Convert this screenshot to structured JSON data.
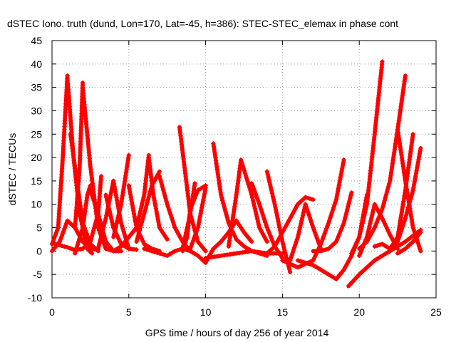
{
  "chart_data": {
    "type": "scatter",
    "title": "dSTEC Iono. truth (dund, Lon=170, Lat=-45, h=386): STEC-STEC_elemax in phase cont",
    "xlabel": "GPS time / hours of day 256 of year 2014",
    "ylabel": "dSTEC  / TECUs",
    "xlim": [
      0,
      25
    ],
    "ylim": [
      -10,
      45
    ],
    "x_ticks": [
      "0",
      "5",
      "10",
      "15",
      "20",
      "25"
    ],
    "y_ticks": [
      "-10",
      "-5",
      "0",
      "5",
      "10",
      "15",
      "20",
      "25",
      "30",
      "35",
      "40",
      "45"
    ],
    "grid": true,
    "marker": "+",
    "color": "#ff0000",
    "series": [
      {
        "x": [
          0.0,
          0.4,
          0.7,
          1.0
        ],
        "y": [
          1.5,
          5.0,
          20.0,
          37.5
        ]
      },
      {
        "x": [
          1.0,
          1.4,
          1.8,
          2.3,
          2.6
        ],
        "y": [
          37.0,
          20.0,
          8.0,
          0.5,
          -0.5
        ]
      },
      {
        "x": [
          0.0,
          0.5,
          1.0,
          1.5,
          2.0,
          2.5,
          3.0
        ],
        "y": [
          0.0,
          2.0,
          6.5,
          5.0,
          2.0,
          0.5,
          0.3
        ]
      },
      {
        "x": [
          0.2,
          1.0,
          1.5,
          2.0,
          2.5,
          3.0,
          3.2
        ],
        "y": [
          1.5,
          0.8,
          0.2,
          0.5,
          2.0,
          8.0,
          16.0
        ]
      },
      {
        "x": [
          1.5,
          1.8,
          2.0
        ],
        "y": [
          5.0,
          18.0,
          36.0
        ]
      },
      {
        "x": [
          2.0,
          2.5,
          3.0,
          3.5
        ],
        "y": [
          35.0,
          18.0,
          5.0,
          0.5
        ]
      },
      {
        "x": [
          1.2,
          2.0,
          2.5,
          3.0
        ],
        "y": [
          25.0,
          6.0,
          1.5,
          0.0
        ]
      },
      {
        "x": [
          1.5,
          2.0,
          2.3,
          2.5
        ],
        "y": [
          -0.5,
          5.0,
          12.0,
          14.0
        ]
      },
      {
        "x": [
          2.5,
          3.0,
          3.5,
          4.0,
          4.5
        ],
        "y": [
          13.0,
          8.0,
          2.0,
          0.0,
          0.0
        ]
      },
      {
        "x": [
          3.0,
          3.5,
          4.0
        ],
        "y": [
          0.5,
          7.0,
          15.0
        ]
      },
      {
        "x": [
          4.0,
          4.5,
          5.0
        ],
        "y": [
          15.0,
          6.0,
          0.5
        ]
      },
      {
        "x": [
          3.5,
          4.0,
          4.5,
          5.0,
          5.5
        ],
        "y": [
          12.0,
          5.0,
          1.5,
          0.5,
          0.3
        ]
      },
      {
        "x": [
          4.0,
          4.5,
          5.0
        ],
        "y": [
          3.0,
          10.0,
          20.5
        ]
      },
      {
        "x": [
          3.5,
          4.0,
          4.5,
          5.0,
          5.5,
          6.0,
          6.3
        ],
        "y": [
          0.5,
          0.0,
          1.0,
          3.0,
          5.0,
          12.0,
          20.5
        ]
      },
      {
        "x": [
          6.3,
          6.6,
          7.0,
          7.5
        ],
        "y": [
          20.0,
          12.0,
          5.0,
          2.5
        ]
      },
      {
        "x": [
          5.0,
          5.5,
          6.0,
          6.5,
          7.0
        ],
        "y": [
          14.0,
          5.0,
          1.5,
          0.5,
          0.0
        ]
      },
      {
        "x": [
          5.5,
          6.0,
          6.5,
          7.0
        ],
        "y": [
          2.0,
          8.0,
          14.0,
          17.0
        ]
      },
      {
        "x": [
          7.0,
          7.5,
          8.0,
          8.5,
          9.0
        ],
        "y": [
          16.0,
          10.0,
          5.0,
          2.0,
          0.0
        ]
      },
      {
        "x": [
          6.0,
          6.5,
          7.0,
          7.5,
          8.0,
          8.5,
          9.0,
          9.5,
          10.0
        ],
        "y": [
          0.5,
          0.0,
          -0.5,
          -1.0,
          0.0,
          0.5,
          0.0,
          -1.0,
          -2.5
        ]
      },
      {
        "x": [
          8.3,
          8.7,
          9.0,
          9.5,
          10.0
        ],
        "y": [
          26.5,
          16.0,
          8.0,
          2.0,
          0.0
        ]
      },
      {
        "x": [
          8.5,
          9.0,
          9.3
        ],
        "y": [
          0.5,
          8.0,
          14.5
        ]
      },
      {
        "x": [
          8.5,
          8.8,
          9.0,
          9.5,
          10.0
        ],
        "y": [
          0.0,
          3.0,
          9.0,
          13.0,
          14.0
        ]
      },
      {
        "x": [
          9.0,
          9.5,
          10.0
        ],
        "y": [
          0.5,
          5.0,
          13.5
        ]
      },
      {
        "x": [
          10.0,
          10.5,
          11.0,
          11.5,
          12.0,
          12.5,
          13.0
        ],
        "y": [
          -2.5,
          0.5,
          2.0,
          4.0,
          6.5,
          4.0,
          2.0
        ]
      },
      {
        "x": [
          10.5,
          11.0,
          11.5,
          12.0,
          12.5,
          13.0,
          13.5,
          14.0
        ],
        "y": [
          23.0,
          12.0,
          6.0,
          2.5,
          1.0,
          0.0,
          -0.5,
          -1.0
        ]
      },
      {
        "x": [
          10.0,
          11.0,
          12.0,
          13.0,
          14.0,
          15.0
        ],
        "y": [
          -1.5,
          -1.0,
          -0.5,
          0.0,
          -0.5,
          -0.5
        ]
      },
      {
        "x": [
          11.5,
          12.0,
          12.3,
          13.0,
          13.5,
          14.0
        ],
        "y": [
          1.0,
          12.0,
          19.5,
          12.0,
          5.0,
          2.0
        ]
      },
      {
        "x": [
          13.0,
          13.5,
          14.0,
          14.5,
          15.0
        ],
        "y": [
          14.5,
          10.0,
          5.0,
          1.0,
          -1.5
        ]
      },
      {
        "x": [
          14.0,
          14.5,
          15.0,
          15.5
        ],
        "y": [
          17.0,
          10.0,
          2.0,
          -4.5
        ]
      },
      {
        "x": [
          14.0,
          14.5,
          15.0,
          15.5,
          16.0,
          16.5,
          17.0
        ],
        "y": [
          -0.5,
          1.0,
          4.0,
          7.0,
          10.0,
          11.5,
          11.0
        ]
      },
      {
        "x": [
          15.5,
          16.0,
          16.5,
          17.0,
          17.5
        ],
        "y": [
          -2.0,
          3.0,
          10.0,
          5.0,
          0.5
        ]
      },
      {
        "x": [
          15.0,
          16.0,
          17.0,
          17.5,
          18.0,
          18.5,
          19.0
        ],
        "y": [
          -2.0,
          -3.5,
          -2.0,
          1.5,
          6.0,
          11.0,
          19.5
        ]
      },
      {
        "x": [
          16.0,
          17.0,
          18.0,
          18.5,
          19.0,
          19.5,
          20.0,
          20.5
        ],
        "y": [
          -2.0,
          -3.0,
          -5.0,
          -6.0,
          -4.0,
          -1.0,
          3.0,
          12.0
        ]
      },
      {
        "x": [
          17.0,
          17.5,
          18.0,
          18.5,
          19.0,
          19.5
        ],
        "y": [
          0.0,
          0.0,
          0.5,
          2.0,
          6.0,
          12.5
        ]
      },
      {
        "x": [
          19.3,
          20.0,
          21.0,
          22.0,
          23.0,
          24.0
        ],
        "y": [
          -7.5,
          -5.0,
          -2.0,
          0.0,
          2.0,
          4.5
        ]
      },
      {
        "x": [
          19.5,
          20.0,
          20.5,
          21.0,
          21.5
        ],
        "y": [
          -0.5,
          3.0,
          10.0,
          25.0,
          40.5
        ]
      },
      {
        "x": [
          20.0,
          20.5,
          21.0,
          21.5,
          22.0,
          22.5,
          23.0
        ],
        "y": [
          0.5,
          2.0,
          5.0,
          9.0,
          15.0,
          26.0,
          37.5
        ]
      },
      {
        "x": [
          20.0,
          20.5,
          21.0,
          21.5,
          22.0,
          22.5
        ],
        "y": [
          -1.0,
          3.0,
          10.0,
          7.0,
          3.5,
          0.5
        ]
      },
      {
        "x": [
          21.0,
          21.5,
          22.0,
          22.5,
          23.0,
          23.5
        ],
        "y": [
          1.0,
          1.5,
          0.5,
          3.0,
          13.0,
          25.0
        ]
      },
      {
        "x": [
          22.5,
          23.0,
          23.5,
          24.0
        ],
        "y": [
          26.0,
          15.0,
          5.0,
          0.0
        ]
      },
      {
        "x": [
          22.0,
          22.5,
          23.0,
          23.5,
          24.0
        ],
        "y": [
          0.5,
          2.0,
          7.0,
          13.0,
          22.0
        ]
      },
      {
        "x": [
          22.5,
          23.0,
          23.5,
          24.0
        ],
        "y": [
          -0.5,
          0.5,
          2.0,
          4.0
        ]
      }
    ]
  }
}
